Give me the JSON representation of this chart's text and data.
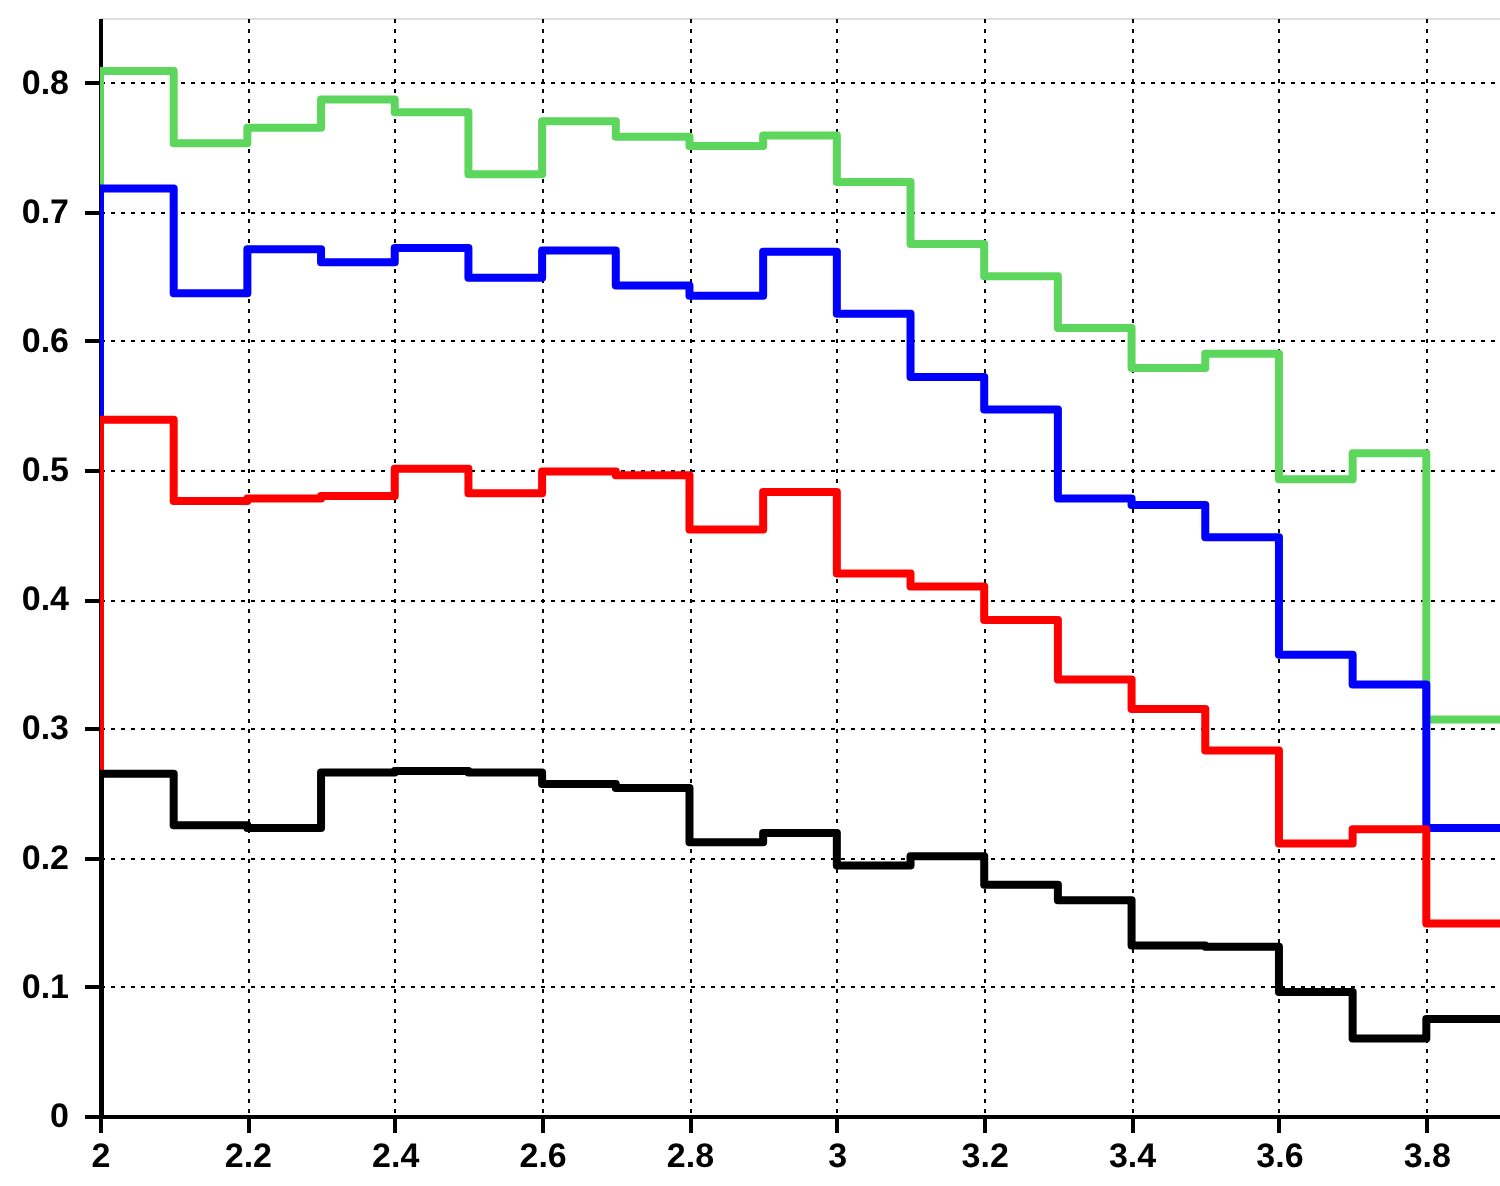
{
  "chart_data": {
    "type": "histogram",
    "bins": [
      2.0,
      2.1,
      2.2,
      2.3,
      2.4,
      2.5,
      2.6,
      2.7,
      2.8,
      2.9,
      3.0,
      3.1,
      3.2,
      3.3,
      3.4,
      3.5,
      3.6,
      3.7,
      3.8,
      3.9
    ],
    "series": [
      {
        "color": "#5cd65c",
        "values": [
          0.809,
          0.753,
          0.765,
          0.787,
          0.777,
          0.729,
          0.77,
          0.758,
          0.751,
          0.759,
          0.723,
          0.675,
          0.65,
          0.61,
          0.579,
          0.59,
          0.493,
          0.513,
          0.307
        ]
      },
      {
        "color": "#0000ff",
        "values": [
          0.718,
          0.637,
          0.671,
          0.661,
          0.672,
          0.649,
          0.67,
          0.643,
          0.635,
          0.669,
          0.621,
          0.572,
          0.547,
          0.478,
          0.473,
          0.448,
          0.357,
          0.334,
          0.223
        ]
      },
      {
        "color": "#ff0000",
        "values": [
          0.539,
          0.476,
          0.478,
          0.48,
          0.501,
          0.482,
          0.499,
          0.496,
          0.454,
          0.483,
          0.42,
          0.41,
          0.384,
          0.338,
          0.315,
          0.283,
          0.211,
          0.222,
          0.149
        ]
      },
      {
        "color": "#000000",
        "values": [
          0.265,
          0.225,
          0.223,
          0.266,
          0.267,
          0.266,
          0.257,
          0.254,
          0.212,
          0.219,
          0.194,
          0.201,
          0.179,
          0.167,
          0.132,
          0.131,
          0.096,
          0.06,
          0.075
        ]
      }
    ],
    "xlim": [
      2,
      3.9
    ],
    "xticks": [
      2,
      2.2,
      2.4,
      2.6,
      2.8,
      3,
      3.2,
      3.4,
      3.6,
      3.8
    ],
    "ylim": [
      0,
      0.85
    ],
    "yticks": [
      0,
      0.1,
      0.2,
      0.3,
      0.4,
      0.5,
      0.6,
      0.7,
      0.8
    ],
    "grid": true,
    "line_style": "solid"
  }
}
